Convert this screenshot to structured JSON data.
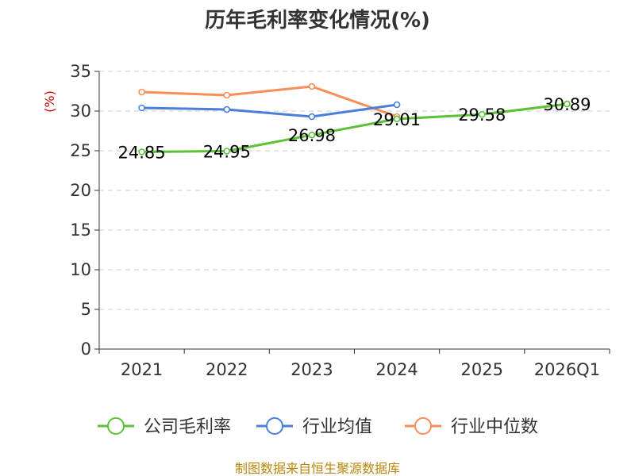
{
  "chart_data": {
    "type": "line",
    "title": "历年毛利率变化情况(%)",
    "ylabel": "(%)",
    "xlabel": "",
    "categories": [
      "2021",
      "2022",
      "2023",
      "2024",
      "2025",
      "2026Q1"
    ],
    "ylim": [
      0,
      35
    ],
    "yticks": [
      0,
      5,
      10,
      15,
      20,
      25,
      30,
      35
    ],
    "grid": true,
    "legend": "bottom",
    "series": [
      {
        "name": "公司毛利率",
        "color": "#5bc236",
        "values": [
          24.85,
          24.95,
          26.98,
          29.01,
          29.58,
          30.89
        ],
        "labels": [
          "24.85",
          "24.95",
          "26.98",
          "29.01",
          "29.58",
          "30.89"
        ]
      },
      {
        "name": "行业均值",
        "color": "#4a7fd9",
        "values": [
          30.4,
          30.2,
          29.3,
          30.8,
          null,
          null
        ]
      },
      {
        "name": "行业中位数",
        "color": "#f88d58",
        "values": [
          32.4,
          32.0,
          33.1,
          29.3,
          null,
          null
        ]
      }
    ]
  },
  "source": "制图数据来自恒生聚源数据库"
}
